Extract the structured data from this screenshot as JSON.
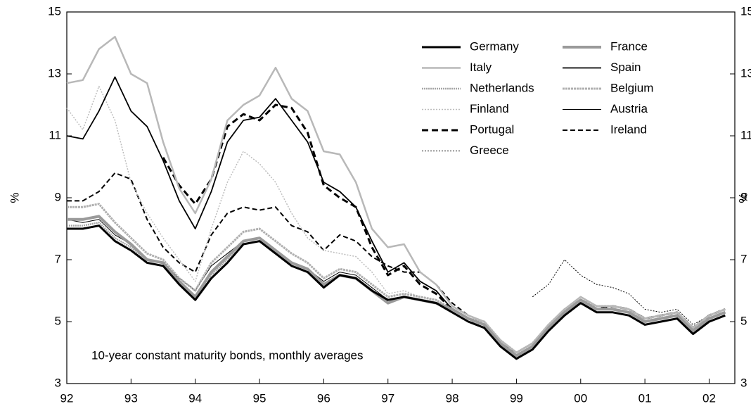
{
  "chart_data": {
    "type": "line",
    "annotation": "10-year constant maturity bonds, monthly averages",
    "y_label": "%",
    "y2_label": "%",
    "x": [
      1992,
      1992.25,
      1992.5,
      1992.75,
      1993,
      1993.25,
      1993.5,
      1993.75,
      1994,
      1994.25,
      1994.5,
      1994.75,
      1995,
      1995.25,
      1995.5,
      1995.75,
      1996,
      1996.25,
      1996.5,
      1996.75,
      1997,
      1997.25,
      1997.5,
      1997.75,
      1998,
      1998.25,
      1998.5,
      1998.75,
      1999,
      1999.25,
      1999.5,
      1999.75,
      2000,
      2000.25,
      2000.5,
      2000.75,
      2001,
      2001.25,
      2001.5,
      2001.75,
      2002,
      2002.25
    ],
    "xlim": [
      1992,
      2002.4
    ],
    "xticks": [
      {
        "value": 1992,
        "label": "92"
      },
      {
        "value": 1993,
        "label": "93"
      },
      {
        "value": 1994,
        "label": "94"
      },
      {
        "value": 1995,
        "label": "95"
      },
      {
        "value": 1996,
        "label": "96"
      },
      {
        "value": 1997,
        "label": "97"
      },
      {
        "value": 1998,
        "label": "98"
      },
      {
        "value": 1999,
        "label": "99"
      },
      {
        "value": 2000,
        "label": "00"
      },
      {
        "value": 2001,
        "label": "01"
      },
      {
        "value": 2002,
        "label": "02"
      }
    ],
    "ylim": [
      3,
      15
    ],
    "yticks": [
      3,
      5,
      7,
      9,
      11,
      13,
      15
    ],
    "y2lim": [
      3,
      15
    ],
    "y2ticks": [
      3,
      5,
      7,
      9,
      11,
      13,
      15
    ],
    "grid": false,
    "legend": "top-right",
    "series": [
      {
        "name": "Germany",
        "color": "#000000",
        "width": 3,
        "dash": "none",
        "values": [
          8.0,
          8.0,
          8.1,
          7.6,
          7.3,
          6.9,
          6.8,
          6.2,
          5.7,
          6.4,
          6.9,
          7.5,
          7.6,
          7.2,
          6.8,
          6.6,
          6.1,
          6.5,
          6.4,
          6.0,
          5.7,
          5.8,
          5.7,
          5.6,
          5.3,
          5.0,
          4.8,
          4.2,
          3.8,
          4.1,
          4.7,
          5.2,
          5.6,
          5.3,
          5.3,
          5.2,
          4.9,
          5.0,
          5.1,
          4.6,
          5.0,
          5.2
        ]
      },
      {
        "name": "France",
        "color": "#9a9a9a",
        "width": 4,
        "dash": "none",
        "values": [
          8.3,
          8.3,
          8.4,
          7.9,
          7.5,
          7.0,
          6.9,
          6.3,
          5.8,
          6.6,
          7.1,
          7.6,
          7.7,
          7.3,
          6.9,
          6.7,
          6.2,
          6.5,
          6.4,
          6.0,
          5.6,
          5.8,
          5.7,
          5.6,
          5.4,
          5.1,
          4.9,
          4.3,
          3.9,
          4.2,
          4.8,
          5.3,
          5.7,
          5.4,
          5.4,
          5.3,
          5.0,
          5.1,
          5.2,
          4.7,
          5.1,
          5.3
        ]
      },
      {
        "name": "Italy",
        "color": "#b8b8b8",
        "width": 2.5,
        "dash": "none",
        "values": [
          12.7,
          12.8,
          13.8,
          14.2,
          13.0,
          12.7,
          10.8,
          9.3,
          8.5,
          9.6,
          11.5,
          12.0,
          12.3,
          13.2,
          12.2,
          11.8,
          10.5,
          10.4,
          9.5,
          8.0,
          7.4,
          7.5,
          6.6,
          6.2,
          5.5,
          5.2,
          5.0,
          4.4,
          4.0,
          4.3,
          4.9,
          5.4,
          5.8,
          5.5,
          5.5,
          5.4,
          5.1,
          5.2,
          5.3,
          4.8,
          5.2,
          5.4
        ]
      },
      {
        "name": "Spain",
        "color": "#000000",
        "width": 1.8,
        "dash": "none",
        "values": [
          11.0,
          10.9,
          11.8,
          12.9,
          11.8,
          11.3,
          10.2,
          8.9,
          8.0,
          9.2,
          10.8,
          11.5,
          11.6,
          12.2,
          11.5,
          10.8,
          9.5,
          9.2,
          8.7,
          7.6,
          6.6,
          6.9,
          6.3,
          6.0,
          5.4,
          5.1,
          4.9,
          4.3,
          3.9,
          4.2,
          4.8,
          5.3,
          5.7,
          5.4,
          5.4,
          5.3,
          5.0,
          5.1,
          5.2,
          4.7,
          5.1,
          5.3
        ]
      },
      {
        "name": "Netherlands",
        "color": "#a6a6a6",
        "width": 2.5,
        "dash": "2 1",
        "values": [
          8.1,
          8.1,
          8.2,
          7.7,
          7.4,
          6.9,
          6.8,
          6.2,
          5.8,
          6.5,
          7.0,
          7.6,
          7.7,
          7.3,
          6.9,
          6.6,
          6.2,
          6.5,
          6.4,
          6.0,
          5.7,
          5.8,
          5.7,
          5.6,
          5.3,
          5.0,
          4.9,
          4.2,
          3.8,
          4.2,
          4.8,
          5.3,
          5.6,
          5.4,
          5.4,
          5.3,
          5.0,
          5.1,
          5.2,
          4.7,
          5.1,
          5.3
        ]
      },
      {
        "name": "Belgium",
        "color": "#b0b0b0",
        "width": 3,
        "dash": "3 1",
        "values": [
          8.7,
          8.7,
          8.8,
          8.2,
          7.7,
          7.2,
          7.0,
          6.4,
          6.0,
          6.9,
          7.4,
          7.9,
          8.0,
          7.6,
          7.2,
          6.9,
          6.4,
          6.7,
          6.6,
          6.2,
          5.8,
          5.9,
          5.8,
          5.7,
          5.4,
          5.1,
          5.0,
          4.4,
          4.0,
          4.3,
          4.9,
          5.4,
          5.7,
          5.5,
          5.5,
          5.4,
          5.1,
          5.2,
          5.3,
          4.8,
          5.2,
          5.4
        ]
      },
      {
        "name": "Finland",
        "color": "#bdbdbd",
        "width": 1.5,
        "dash": "2 2",
        "values": [
          11.9,
          11.2,
          12.6,
          11.5,
          9.5,
          8.5,
          7.7,
          7.0,
          6.3,
          8.0,
          9.5,
          10.5,
          10.1,
          9.5,
          8.5,
          7.7,
          7.3,
          7.2,
          7.1,
          6.6,
          5.9,
          6.0,
          5.8,
          5.7,
          5.3,
          5.0,
          4.9,
          4.2,
          3.9,
          4.2,
          4.8,
          5.3,
          5.7,
          5.4,
          5.4,
          5.3,
          5.0,
          5.1,
          5.2,
          4.7,
          5.1,
          5.3
        ]
      },
      {
        "name": "Austria",
        "color": "#000000",
        "width": 1,
        "dash": "none",
        "values": [
          8.3,
          8.2,
          8.3,
          7.8,
          7.5,
          7.0,
          6.9,
          6.4,
          6.0,
          6.8,
          7.2,
          7.6,
          7.7,
          7.3,
          6.9,
          6.7,
          6.3,
          6.6,
          6.5,
          6.1,
          5.7,
          5.8,
          5.7,
          5.6,
          5.4,
          5.1,
          4.9,
          4.3,
          3.9,
          4.2,
          4.8,
          5.3,
          5.7,
          5.4,
          5.4,
          5.3,
          5.0,
          5.1,
          5.2,
          4.7,
          5.1,
          5.3
        ]
      },
      {
        "name": "Portugal",
        "color": "#000000",
        "width": 3,
        "dash": "9 5",
        "values": [
          null,
          null,
          null,
          null,
          null,
          null,
          10.3,
          9.4,
          8.8,
          9.6,
          11.3,
          11.7,
          11.5,
          12.0,
          11.9,
          11.1,
          9.4,
          9.0,
          8.7,
          7.4,
          6.5,
          6.8,
          6.2,
          5.9,
          5.4,
          5.1,
          4.9,
          4.3,
          3.9,
          4.2,
          4.8,
          5.3,
          5.7,
          5.4,
          5.5,
          5.4,
          5.1,
          5.2,
          5.3,
          4.8,
          5.2,
          5.4
        ]
      },
      {
        "name": "Ireland",
        "color": "#000000",
        "width": 2,
        "dash": "7 4",
        "values": [
          8.9,
          8.9,
          9.2,
          9.8,
          9.6,
          8.3,
          7.4,
          6.9,
          6.6,
          7.8,
          8.5,
          8.7,
          8.6,
          8.7,
          8.1,
          7.9,
          7.3,
          7.8,
          7.6,
          7.1,
          6.8,
          6.6,
          6.6,
          6.2,
          5.6,
          5.2,
          5.0,
          4.3,
          4.0,
          4.3,
          4.9,
          5.4,
          5.8,
          5.5,
          5.5,
          5.4,
          5.1,
          5.2,
          5.3,
          4.8,
          5.2,
          5.4
        ]
      },
      {
        "name": "Greece",
        "color": "#000000",
        "width": 1,
        "dash": "2 2",
        "values": [
          null,
          null,
          null,
          null,
          null,
          null,
          null,
          null,
          null,
          null,
          null,
          null,
          null,
          null,
          null,
          null,
          null,
          null,
          null,
          null,
          null,
          null,
          null,
          null,
          null,
          null,
          null,
          null,
          null,
          5.8,
          6.2,
          7.0,
          6.5,
          6.2,
          6.1,
          5.9,
          5.4,
          5.3,
          5.4,
          4.9,
          5.2,
          5.4
        ]
      }
    ]
  }
}
